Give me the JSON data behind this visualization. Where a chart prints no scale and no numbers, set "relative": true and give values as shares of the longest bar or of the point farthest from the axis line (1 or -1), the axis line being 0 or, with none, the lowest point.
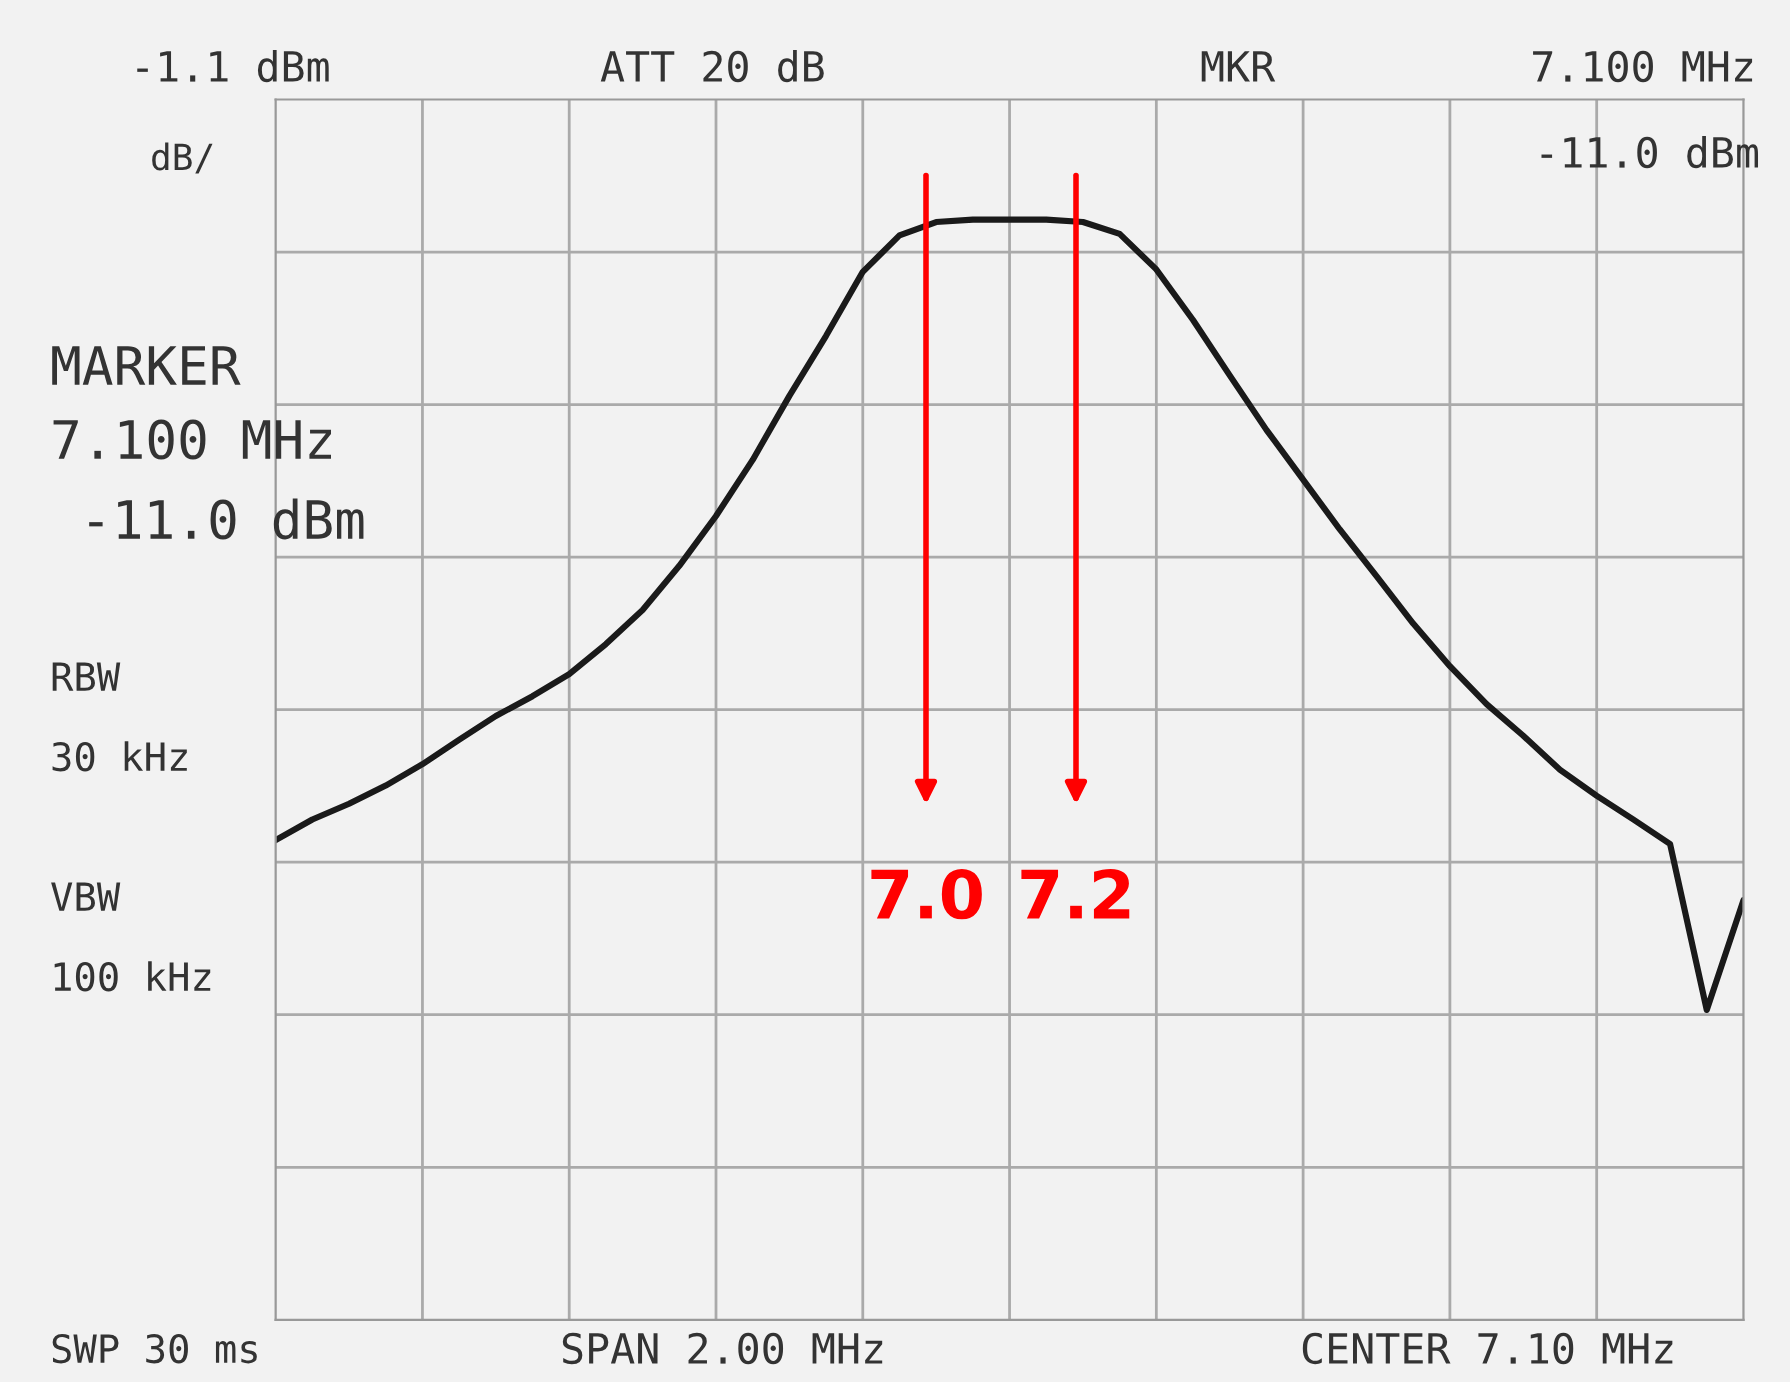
{
  "chart_data": {
    "type": "line",
    "relative": true,
    "grid": true,
    "categories": [
      null,
      null,
      null,
      null,
      null,
      null,
      null,
      null,
      null,
      null,
      null,
      null,
      null,
      null,
      null,
      null,
      null,
      null,
      null,
      null,
      null,
      null,
      null,
      null,
      null,
      null,
      null,
      null,
      null,
      null,
      null,
      null,
      null,
      null,
      null,
      null,
      null,
      null,
      null,
      null,
      null
    ],
    "series": [
      {
        "color": "#1a1a1a",
        "values": [
          0.215,
          0.241,
          0.261,
          0.284,
          0.311,
          0.342,
          0.372,
          0.397,
          0.425,
          0.463,
          0.506,
          0.562,
          0.625,
          0.696,
          0.777,
          0.853,
          0.934,
          0.98,
          0.997,
          1.0,
          1.0,
          1.0,
          0.997,
          0.982,
          0.937,
          0.873,
          0.803,
          0.734,
          0.671,
          0.608,
          0.549,
          0.489,
          0.435,
          0.387,
          0.347,
          0.304,
          0.271,
          0.241,
          0.21,
          0.0,
          0.139
        ]
      }
    ],
    "annotations": [
      "-1.1 dBm",
      "dB/",
      "ATT 20 dB",
      "MKR",
      "7.100 MHz",
      "-11.0 dBm",
      "MARKER",
      "7.100 MHz",
      "-11.0 dBm",
      "RBW",
      "30 kHz",
      "VBW",
      "100 kHz",
      "SWP 30 ms",
      "SPAN 2.00 MHz",
      "CENTER 7.10 MHz",
      "7.0",
      "7.2"
    ]
  }
}
